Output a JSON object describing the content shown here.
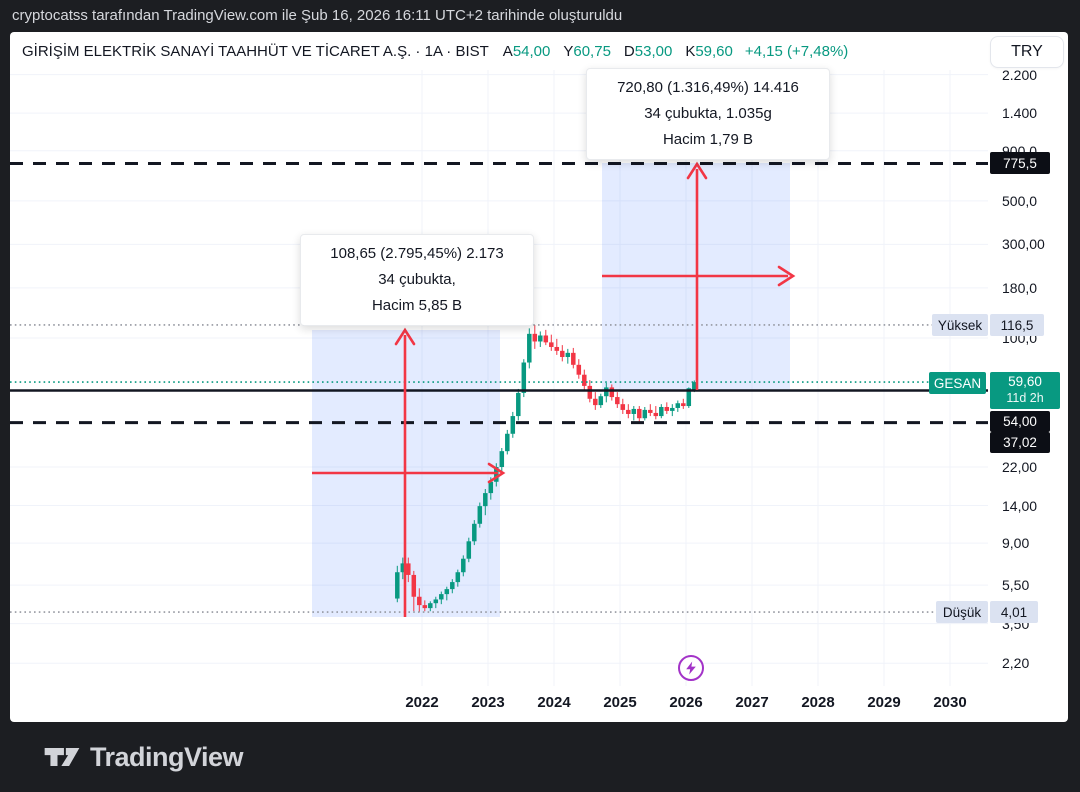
{
  "attribution": "cryptocatss tarafından TradingView.com ile Şub 16, 2026 16:11 UTC+2 tarihinde oluşturuldu",
  "header": {
    "symbol_title": "GİRİŞİM ELEKTRİK SANAYİ TAAHHÜT VE TİCARET A.Ş. · 1A · BIST",
    "ohlc": [
      {
        "letter": "A",
        "value": "54,00"
      },
      {
        "letter": "Y",
        "value": "60,75"
      },
      {
        "letter": "D",
        "value": "53,00"
      },
      {
        "letter": "K",
        "value": "59,60"
      }
    ],
    "change": "+4,15 (+7,48%)",
    "currency_button": "TRY"
  },
  "axis": {
    "price_ticks": [
      {
        "label": "2.200",
        "value": 2200
      },
      {
        "label": "1.400",
        "value": 1400
      },
      {
        "label": "900,0",
        "value": 900
      },
      {
        "label": "500,0",
        "value": 500
      },
      {
        "label": "300,00",
        "value": 300
      },
      {
        "label": "180,0",
        "value": 180
      },
      {
        "label": "100,0",
        "value": 100
      },
      {
        "label": "22,00",
        "value": 22
      },
      {
        "label": "14,00",
        "value": 14
      },
      {
        "label": "9,00",
        "value": 9
      },
      {
        "label": "5,50",
        "value": 5.5
      },
      {
        "label": "3,50",
        "value": 3.5
      },
      {
        "label": "2,20",
        "value": 2.2
      }
    ],
    "years": [
      "2022",
      "2023",
      "2024",
      "2025",
      "2026",
      "2027",
      "2028",
      "2029",
      "2030"
    ]
  },
  "price_labels": {
    "target_line": "775,5",
    "symbol": "GESAN",
    "last_price": "59,60",
    "countdown": "11d 2h",
    "open_line": "54,00",
    "support_line": "37,02",
    "high_name": "Yüksek",
    "high_value": "116,5",
    "low_name": "Düşük",
    "low_value": "4,01"
  },
  "colors": {
    "up": "#089981",
    "down": "#f23645",
    "arrow": "#f23645",
    "selection": "rgba(41,98,255,0.13)",
    "line_black": "#131722",
    "dotted_gray": "#9598a1",
    "current_line": "#089981",
    "event_purple": "#a333c8",
    "grid": "#f0f3fa"
  },
  "footer": {
    "brand": "TradingView"
  },
  "chart_data": {
    "type": "candlestick",
    "title": "GİRİŞİM ELEKTRİK SANAYİ TAAHHÜT VE TİCARET A.Ş.",
    "symbol": "GESAN",
    "exchange": "BIST",
    "interval": "1A",
    "currency": "TRY",
    "scale": "log",
    "x_range_years": [
      2021.5,
      2030.5
    ],
    "grid": true,
    "current_bar": {
      "open": 54.0,
      "high": 60.75,
      "low": 53.0,
      "close": 59.6,
      "change_text": "+4,15 (+7,48%)",
      "countdown": "11d 2h"
    },
    "levels": [
      {
        "name": "upper-target",
        "value": 775.5,
        "style": "dashed-black"
      },
      {
        "name": "high-marker",
        "value": 116.5,
        "style": "dotted-gray",
        "label": "Yüksek"
      },
      {
        "name": "current-price",
        "value": 59.6,
        "style": "dotted-teal"
      },
      {
        "name": "breakout-line",
        "value": 54.0,
        "style": "solid-black"
      },
      {
        "name": "support-line",
        "value": 37.02,
        "style": "dashed-black"
      },
      {
        "name": "low-marker",
        "value": 4.01,
        "style": "dotted-gray",
        "label": "Düşük"
      }
    ],
    "measures": [
      {
        "id": "historical-rally",
        "bars": 34,
        "from_price": 3.89,
        "to_price": 112.54,
        "label_lines": [
          "108,65 (2.795,45%) 2.173",
          "34 çubukta,",
          "Hacim 5,85 B"
        ]
      },
      {
        "id": "projected-rally",
        "bars": 34,
        "from_price": 54.75,
        "to_price": 775.5,
        "label_lines": [
          "720,80 (1.316,49%) 14.416",
          "34 çubukta, 1.035g",
          "Hacim 1,79 B"
        ]
      }
    ],
    "candles_columns": [
      "month",
      "open",
      "high",
      "low",
      "close"
    ],
    "candles": [
      [
        "2021-08",
        4.7,
        6.9,
        4.5,
        6.4
      ],
      [
        "2021-09",
        6.4,
        7.6,
        5.9,
        7.1
      ],
      [
        "2021-10",
        7.1,
        7.6,
        5.7,
        6.2
      ],
      [
        "2021-11",
        6.2,
        6.5,
        4.05,
        4.8
      ],
      [
        "2021-12",
        4.8,
        5.3,
        4.01,
        4.35
      ],
      [
        "2022-01",
        4.35,
        4.6,
        4.05,
        4.2
      ],
      [
        "2022-02",
        4.2,
        4.55,
        4.05,
        4.45
      ],
      [
        "2022-03",
        4.45,
        4.8,
        4.2,
        4.65
      ],
      [
        "2022-04",
        4.65,
        5.1,
        4.4,
        4.95
      ],
      [
        "2022-05",
        4.95,
        5.4,
        4.6,
        5.25
      ],
      [
        "2022-06",
        5.25,
        5.9,
        5.0,
        5.7
      ],
      [
        "2022-07",
        5.7,
        6.6,
        5.4,
        6.4
      ],
      [
        "2022-08",
        6.4,
        7.8,
        6.1,
        7.5
      ],
      [
        "2022-09",
        7.5,
        9.6,
        7.2,
        9.2
      ],
      [
        "2022-10",
        9.2,
        11.8,
        8.8,
        11.3
      ],
      [
        "2022-11",
        11.3,
        14.5,
        10.8,
        13.9
      ],
      [
        "2022-12",
        13.9,
        17.0,
        12.5,
        16.2
      ],
      [
        "2023-01",
        16.2,
        19.5,
        15.0,
        18.5
      ],
      [
        "2023-02",
        18.5,
        23.0,
        17.5,
        22.0
      ],
      [
        "2023-03",
        22.0,
        27.5,
        21.0,
        26.5
      ],
      [
        "2023-04",
        26.5,
        34.0,
        25.5,
        32.5
      ],
      [
        "2023-05",
        32.5,
        42.0,
        31.0,
        40.0
      ],
      [
        "2023-06",
        40.0,
        55.0,
        38.0,
        52.5
      ],
      [
        "2023-07",
        52.5,
        78.0,
        50.0,
        75.0
      ],
      [
        "2023-08",
        75.0,
        112.0,
        70.0,
        105.0
      ],
      [
        "2023-09",
        105.0,
        116.5,
        88.0,
        96.0
      ],
      [
        "2023-10",
        96.0,
        108.0,
        90.0,
        103.0
      ],
      [
        "2023-11",
        103.0,
        110.0,
        92.0,
        95.0
      ],
      [
        "2023-12",
        95.0,
        104.0,
        86.0,
        90.0
      ],
      [
        "2024-01",
        90.0,
        99.0,
        82.0,
        86.0
      ],
      [
        "2024-02",
        86.0,
        92.0,
        76.0,
        80.0
      ],
      [
        "2024-03",
        80.0,
        88.0,
        74.0,
        84.0
      ],
      [
        "2024-04",
        84.0,
        89.0,
        70.0,
        73.0
      ],
      [
        "2024-05",
        73.0,
        78.0,
        62.0,
        65.0
      ],
      [
        "2024-06",
        65.0,
        69.0,
        54.0,
        57.0
      ],
      [
        "2024-07",
        57.0,
        61.0,
        47.0,
        49.0
      ],
      [
        "2024-08",
        49.0,
        53.0,
        43.0,
        45.5
      ],
      [
        "2024-09",
        45.5,
        52.0,
        44.0,
        50.5
      ],
      [
        "2024-10",
        50.5,
        59.0,
        47.0,
        56.0
      ],
      [
        "2024-11",
        56.0,
        58.0,
        48.0,
        50.0
      ],
      [
        "2024-12",
        50.0,
        53.0,
        44.0,
        46.0
      ],
      [
        "2025-01",
        46.0,
        49.0,
        41.0,
        43.0
      ],
      [
        "2025-02",
        43.0,
        46.0,
        39.0,
        41.0
      ],
      [
        "2025-03",
        41.0,
        45.0,
        38.0,
        43.5
      ],
      [
        "2025-04",
        43.5,
        45.0,
        37.02,
        39.0
      ],
      [
        "2025-05",
        39.0,
        44.5,
        38.0,
        43.0
      ],
      [
        "2025-06",
        43.0,
        46.0,
        40.0,
        41.5
      ],
      [
        "2025-07",
        41.5,
        45.0,
        38.5,
        40.0
      ],
      [
        "2025-08",
        40.0,
        46.0,
        39.0,
        44.5
      ],
      [
        "2025-09",
        44.5,
        47.0,
        41.0,
        42.5
      ],
      [
        "2025-10",
        42.5,
        46.0,
        40.0,
        44.0
      ],
      [
        "2025-11",
        44.0,
        48.0,
        42.0,
        46.5
      ],
      [
        "2025-12",
        46.5,
        49.0,
        43.5,
        45.0
      ],
      [
        "2026-01",
        45.0,
        56.0,
        44.0,
        55.45
      ],
      [
        "2026-02",
        54.0,
        60.75,
        53.0,
        59.6
      ]
    ]
  }
}
